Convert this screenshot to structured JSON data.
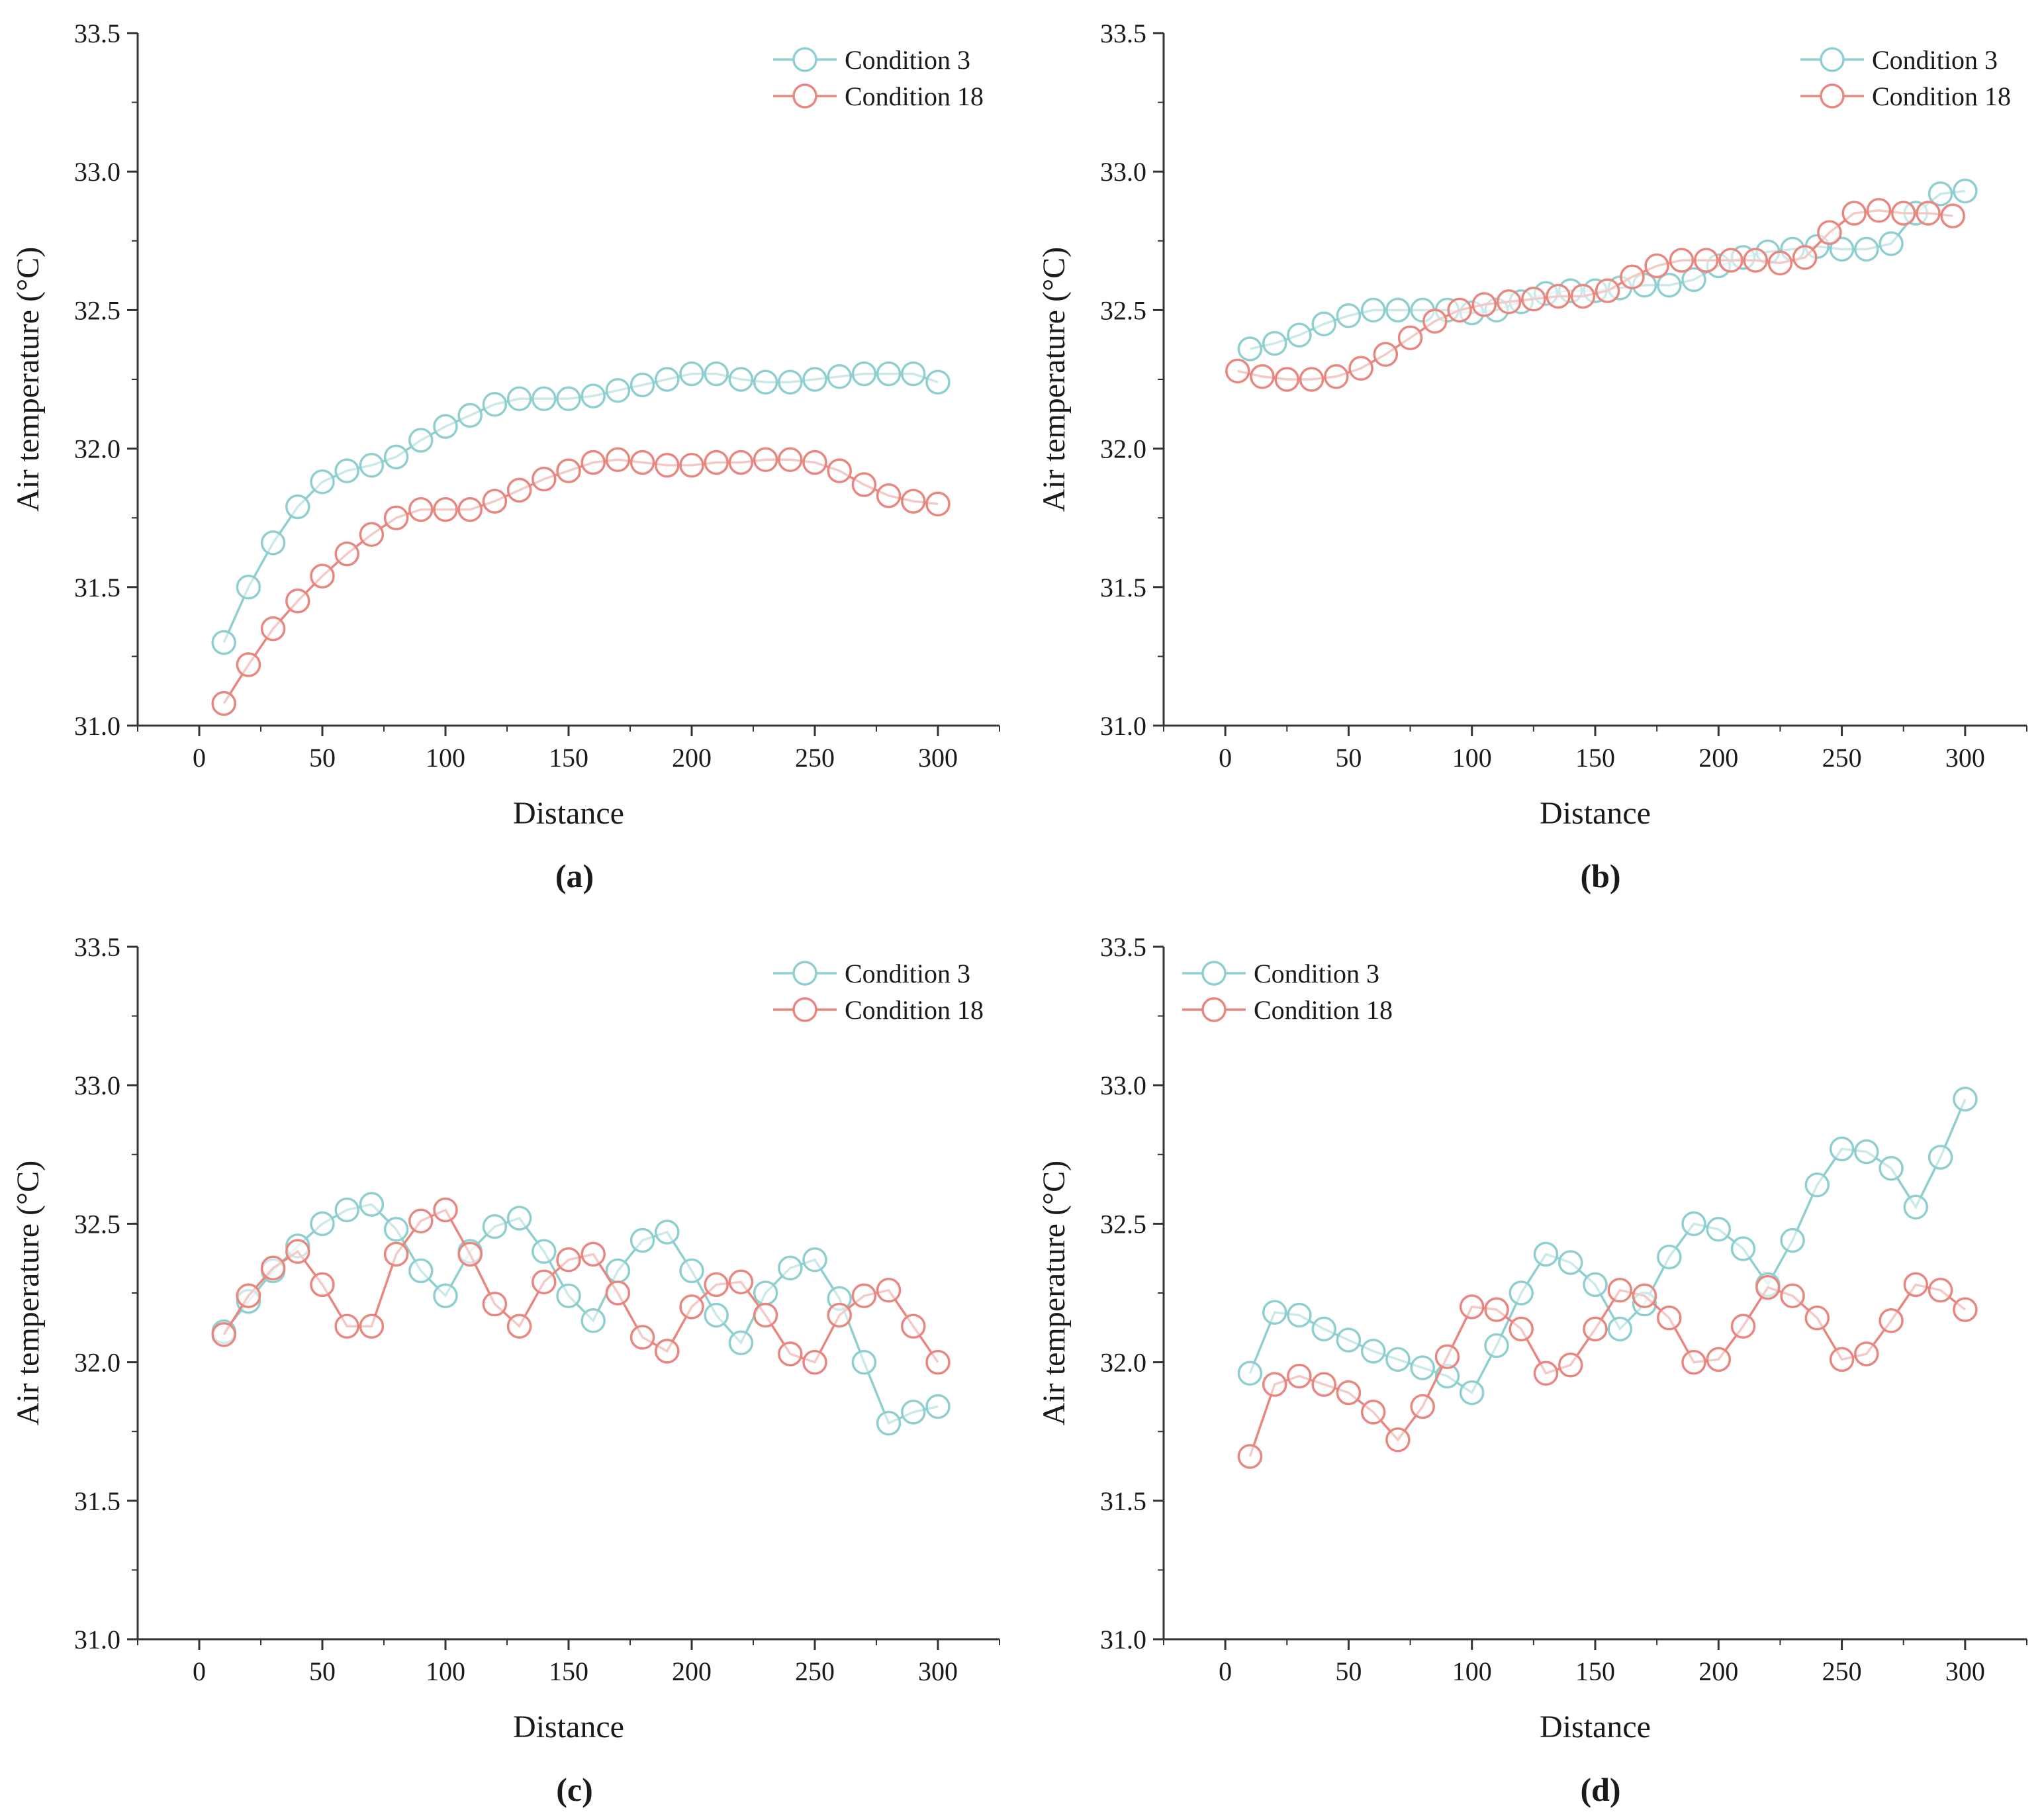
{
  "figure": {
    "colors": {
      "condition3": "#8fcfcf",
      "condition18": "#e8877f",
      "axis": "#333333"
    }
  },
  "chart_data": [
    {
      "type": "line",
      "panel_label": "(a)",
      "xlabel": "Distance",
      "ylabel": "Air temperature (°C)",
      "xlim": [
        -25,
        325
      ],
      "ylim": [
        31.0,
        33.5
      ],
      "xticks": [
        "0",
        "50",
        "100",
        "150",
        "200",
        "250",
        "300"
      ],
      "yticks": [
        "31.0",
        "31.5",
        "32.0",
        "32.5",
        "33.0",
        "33.5"
      ],
      "legend_position": "top-right",
      "series": [
        {
          "name": "Condition 3",
          "x": [
            10,
            20,
            30,
            40,
            50,
            60,
            70,
            80,
            90,
            100,
            110,
            120,
            130,
            140,
            150,
            160,
            170,
            180,
            190,
            200,
            210,
            220,
            230,
            240,
            250,
            260,
            270,
            280,
            290,
            300
          ],
          "values": [
            31.3,
            31.5,
            31.66,
            31.79,
            31.88,
            31.92,
            31.94,
            31.97,
            32.03,
            32.08,
            32.12,
            32.16,
            32.18,
            32.18,
            32.18,
            32.19,
            32.21,
            32.23,
            32.25,
            32.27,
            32.27,
            32.25,
            32.24,
            32.24,
            32.25,
            32.26,
            32.27,
            32.27,
            32.27,
            32.24
          ]
        },
        {
          "name": "Condition 18",
          "x": [
            10,
            20,
            30,
            40,
            50,
            60,
            70,
            80,
            90,
            100,
            110,
            120,
            130,
            140,
            150,
            160,
            170,
            180,
            190,
            200,
            210,
            220,
            230,
            240,
            250,
            260,
            270,
            280,
            290,
            300
          ],
          "values": [
            31.08,
            31.22,
            31.35,
            31.45,
            31.54,
            31.62,
            31.69,
            31.75,
            31.78,
            31.78,
            31.78,
            31.81,
            31.85,
            31.89,
            31.92,
            31.95,
            31.96,
            31.95,
            31.94,
            31.94,
            31.95,
            31.95,
            31.96,
            31.96,
            31.95,
            31.92,
            31.87,
            31.83,
            31.81,
            31.8
          ]
        }
      ]
    },
    {
      "type": "line",
      "panel_label": "(b)",
      "xlabel": "Distance",
      "ylabel": "Air temperature (°C)",
      "xlim": [
        -25,
        325
      ],
      "ylim": [
        31.0,
        33.5
      ],
      "xticks": [
        "0",
        "50",
        "100",
        "150",
        "200",
        "250",
        "300"
      ],
      "yticks": [
        "31.0",
        "31.5",
        "32.0",
        "32.5",
        "33.0",
        "33.5"
      ],
      "legend_position": "top-right",
      "series": [
        {
          "name": "Condition 3",
          "x": [
            10,
            20,
            30,
            40,
            50,
            60,
            70,
            80,
            90,
            100,
            110,
            120,
            130,
            140,
            150,
            160,
            170,
            180,
            190,
            200,
            210,
            220,
            230,
            240,
            250,
            260,
            270,
            280,
            290,
            300
          ],
          "values": [
            32.36,
            32.38,
            32.41,
            32.45,
            32.48,
            32.5,
            32.5,
            32.5,
            32.5,
            32.49,
            32.5,
            32.53,
            32.56,
            32.57,
            32.57,
            32.58,
            32.59,
            32.59,
            32.61,
            32.66,
            32.69,
            32.71,
            32.72,
            32.73,
            32.72,
            32.72,
            32.74,
            32.85,
            32.92,
            32.93
          ]
        },
        {
          "name": "Condition 18",
          "x": [
            5,
            15,
            25,
            35,
            45,
            55,
            65,
            75,
            85,
            95,
            105,
            115,
            125,
            135,
            145,
            155,
            165,
            175,
            185,
            195,
            205,
            215,
            225,
            235,
            245,
            255,
            265,
            275,
            285,
            295
          ],
          "values": [
            32.28,
            32.26,
            32.25,
            32.25,
            32.26,
            32.29,
            32.34,
            32.4,
            32.46,
            32.5,
            32.52,
            32.53,
            32.54,
            32.55,
            32.55,
            32.57,
            32.62,
            32.66,
            32.68,
            32.68,
            32.68,
            32.68,
            32.67,
            32.69,
            32.78,
            32.85,
            32.86,
            32.85,
            32.85,
            32.84
          ]
        }
      ]
    },
    {
      "type": "line",
      "panel_label": "(c)",
      "xlabel": "Distance",
      "ylabel": "Air temperature (°C)",
      "xlim": [
        -25,
        325
      ],
      "ylim": [
        31.0,
        33.5
      ],
      "xticks": [
        "0",
        "50",
        "100",
        "150",
        "200",
        "250",
        "300"
      ],
      "yticks": [
        "31.0",
        "31.5",
        "32.0",
        "32.5",
        "33.0",
        "33.5"
      ],
      "legend_position": "top-right",
      "series": [
        {
          "name": "Condition 3",
          "x": [
            10,
            20,
            30,
            40,
            50,
            60,
            70,
            80,
            90,
            100,
            110,
            120,
            130,
            140,
            150,
            160,
            170,
            180,
            190,
            200,
            210,
            220,
            230,
            240,
            250,
            260,
            270,
            280,
            290,
            300
          ],
          "values": [
            32.11,
            32.22,
            32.33,
            32.42,
            32.5,
            32.55,
            32.57,
            32.48,
            32.33,
            32.24,
            32.4,
            32.49,
            32.52,
            32.4,
            32.24,
            32.15,
            32.33,
            32.44,
            32.47,
            32.33,
            32.17,
            32.07,
            32.25,
            32.34,
            32.37,
            32.23,
            32.0,
            31.78,
            31.82,
            31.84
          ]
        },
        {
          "name": "Condition 18",
          "x": [
            10,
            20,
            30,
            40,
            50,
            60,
            70,
            80,
            90,
            100,
            110,
            120,
            130,
            140,
            150,
            160,
            170,
            180,
            190,
            200,
            210,
            220,
            230,
            240,
            250,
            260,
            270,
            280,
            290,
            300
          ],
          "values": [
            32.1,
            32.24,
            32.34,
            32.4,
            32.28,
            32.13,
            32.13,
            32.39,
            32.51,
            32.55,
            32.39,
            32.21,
            32.13,
            32.29,
            32.37,
            32.39,
            32.25,
            32.09,
            32.04,
            32.2,
            32.28,
            32.29,
            32.17,
            32.03,
            32.0,
            32.17,
            32.24,
            32.26,
            32.13,
            32.0
          ]
        }
      ]
    },
    {
      "type": "line",
      "panel_label": "(d)",
      "xlabel": "Distance",
      "ylabel": "Air temperature (°C)",
      "xlim": [
        -25,
        325
      ],
      "ylim": [
        31.0,
        33.5
      ],
      "xticks": [
        "0",
        "50",
        "100",
        "150",
        "200",
        "250",
        "300"
      ],
      "yticks": [
        "31.0",
        "31.5",
        "32.0",
        "32.5",
        "33.0",
        "33.5"
      ],
      "legend_position": "top-left",
      "series": [
        {
          "name": "Condition 3",
          "x": [
            10,
            20,
            30,
            40,
            50,
            60,
            70,
            80,
            90,
            100,
            110,
            120,
            130,
            140,
            150,
            160,
            170,
            180,
            190,
            200,
            210,
            220,
            230,
            240,
            250,
            260,
            270,
            280,
            290,
            300
          ],
          "values": [
            31.96,
            32.18,
            32.17,
            32.12,
            32.08,
            32.04,
            32.01,
            31.98,
            31.95,
            31.89,
            32.06,
            32.25,
            32.39,
            32.36,
            32.28,
            32.12,
            32.21,
            32.38,
            32.5,
            32.48,
            32.41,
            32.28,
            32.44,
            32.64,
            32.77,
            32.76,
            32.7,
            32.56,
            32.74,
            32.95
          ]
        },
        {
          "name": "Condition 18",
          "x": [
            10,
            20,
            30,
            40,
            50,
            60,
            70,
            80,
            90,
            100,
            110,
            120,
            130,
            140,
            150,
            160,
            170,
            180,
            190,
            200,
            210,
            220,
            230,
            240,
            250,
            260,
            270,
            280,
            290,
            300
          ],
          "values": [
            31.66,
            31.92,
            31.95,
            31.92,
            31.89,
            31.82,
            31.72,
            31.84,
            32.02,
            32.2,
            32.19,
            32.12,
            31.96,
            31.99,
            32.12,
            32.26,
            32.24,
            32.16,
            32.0,
            32.01,
            32.13,
            32.27,
            32.24,
            32.16,
            32.01,
            32.03,
            32.15,
            32.28,
            32.26,
            32.19
          ]
        }
      ]
    }
  ]
}
